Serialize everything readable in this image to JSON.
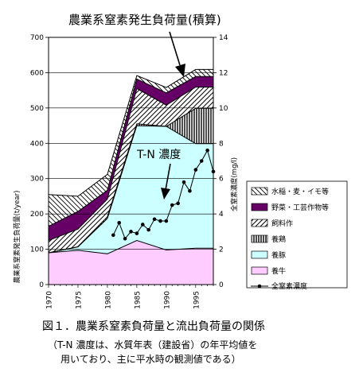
{
  "chart_data": {
    "type": "area",
    "title": "農業系窒素発生負荷量(積算)",
    "ylabel_left": "農業系窒素発生負荷量(t/year)",
    "ylabel_right": "全窒素濃度(mg/l)",
    "xlabel": "",
    "xlim": [
      1970,
      1998
    ],
    "ylim_left": [
      0,
      700
    ],
    "ylim_right": [
      0,
      14
    ],
    "x_ticks": [
      1970,
      1975,
      1980,
      1985,
      1990,
      1995
    ],
    "y_ticks_left": [
      0,
      100,
      200,
      300,
      400,
      500,
      600,
      700
    ],
    "y_ticks_right": [
      0,
      2,
      4,
      6,
      8,
      10,
      12,
      14
    ],
    "grid": true,
    "legend_position": "right",
    "x": [
      1970,
      1975,
      1980,
      1985,
      1990,
      1995,
      1998
    ],
    "series": [
      {
        "name": "養牛",
        "pattern": "pink",
        "values": [
          90,
          97,
          87,
          125,
          98,
          103,
          103
        ]
      },
      {
        "name": "養豚",
        "pattern": "cyan",
        "values": [
          0,
          10,
          100,
          325,
          350,
          296,
          296
        ]
      },
      {
        "name": "養鶏",
        "pattern": "vertical-lines",
        "values": [
          0,
          0,
          5,
          5,
          0,
          100,
          100
        ]
      },
      {
        "name": "飼料作",
        "pattern": "diagonal-right",
        "values": [
          35,
          50,
          50,
          100,
          60,
          60,
          60
        ]
      },
      {
        "name": "野菜・工芸作物等",
        "pattern": "purple",
        "values": [
          40,
          50,
          25,
          27,
          35,
          30,
          30
        ]
      },
      {
        "name": "水稲・麦・イモ等",
        "pattern": "diagonal-left",
        "values": [
          90,
          43,
          45,
          10,
          15,
          20,
          20
        ]
      }
    ],
    "line_series": {
      "name": "全窒素濃度",
      "axis": "right",
      "x": [
        1981,
        1982,
        1983,
        1984,
        1985,
        1986,
        1987,
        1988,
        1989,
        1990,
        1991,
        1992,
        1993,
        1994,
        1995,
        1996,
        1997,
        1998
      ],
      "values": [
        2.8,
        3.5,
        2.6,
        3.0,
        2.9,
        3.4,
        3.1,
        3.7,
        3.6,
        3.6,
        4.5,
        4.6,
        5.8,
        5.3,
        6.5,
        7.0,
        7.6,
        6.4
      ]
    },
    "annotations": [
      {
        "text": "T-N 濃度"
      }
    ]
  },
  "caption": {
    "line1": "図１．農業系窒素負荷量と流出負荷量の関係",
    "line2": "（T-N 濃度は、水質年表（建設省）の年平均値を",
    "line3": "用いており、主に平水時の観測値である）"
  }
}
